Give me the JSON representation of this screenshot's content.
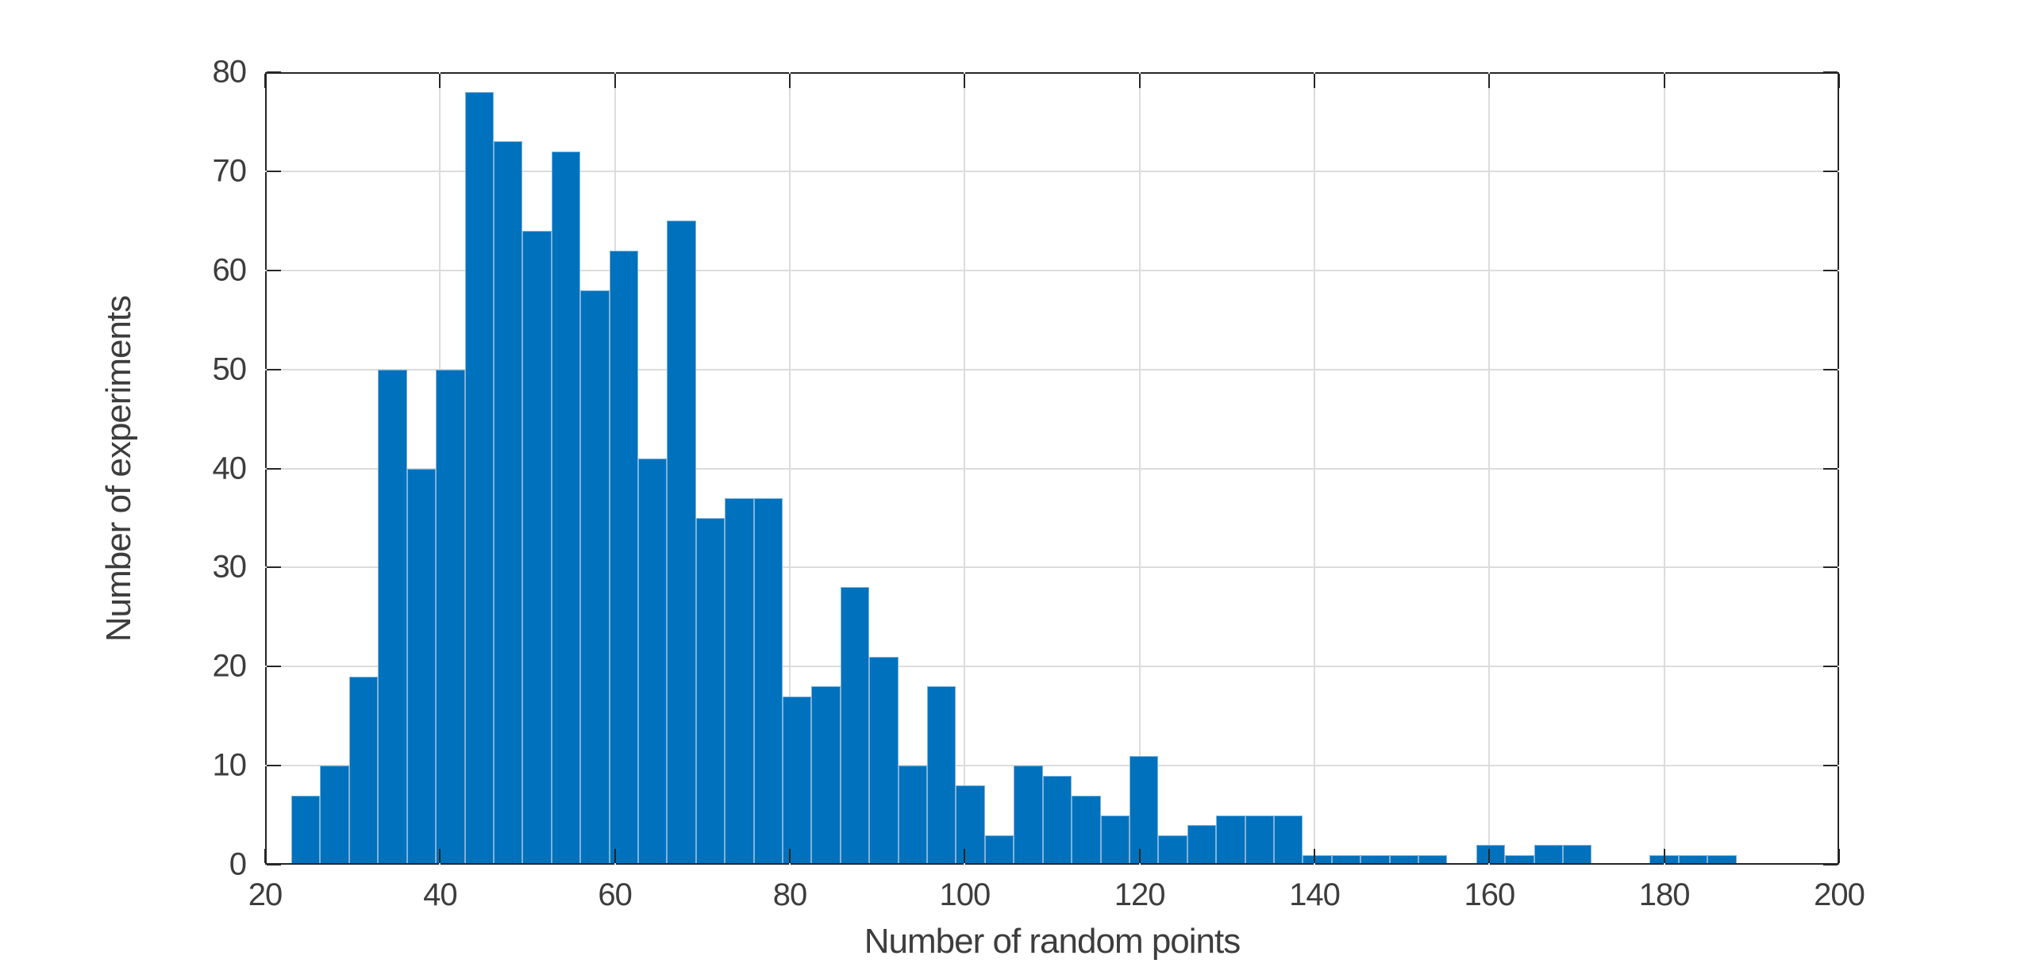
{
  "chart_data": {
    "type": "bar",
    "subtype": "histogram",
    "title": "",
    "xlabel": "Number of random points",
    "ylabel": "Number of experiments",
    "xlim": [
      20,
      200
    ],
    "ylim": [
      0,
      80
    ],
    "x_ticks": [
      20,
      40,
      60,
      80,
      100,
      120,
      140,
      160,
      180,
      200
    ],
    "y_ticks": [
      0,
      10,
      20,
      30,
      40,
      50,
      60,
      70,
      80
    ],
    "grid": true,
    "legend": null,
    "bin_start": 23,
    "bin_width": 3.305,
    "counts": [
      7,
      10,
      19,
      50,
      40,
      50,
      78,
      73,
      64,
      72,
      58,
      62,
      41,
      65,
      35,
      37,
      37,
      17,
      18,
      28,
      21,
      10,
      18,
      8,
      3,
      10,
      9,
      7,
      5,
      11,
      3,
      4,
      5,
      5,
      5,
      1,
      1,
      1,
      1,
      1,
      0,
      2,
      1,
      2,
      2,
      0,
      0,
      1,
      1,
      1
    ],
    "colors": {
      "background": "#ffffff",
      "bar_face": "#0072bd",
      "bar_edge": "#7fb2dc",
      "axis": "#262626",
      "grid": "#dcdcdc",
      "text": "#3d3d3d"
    }
  }
}
